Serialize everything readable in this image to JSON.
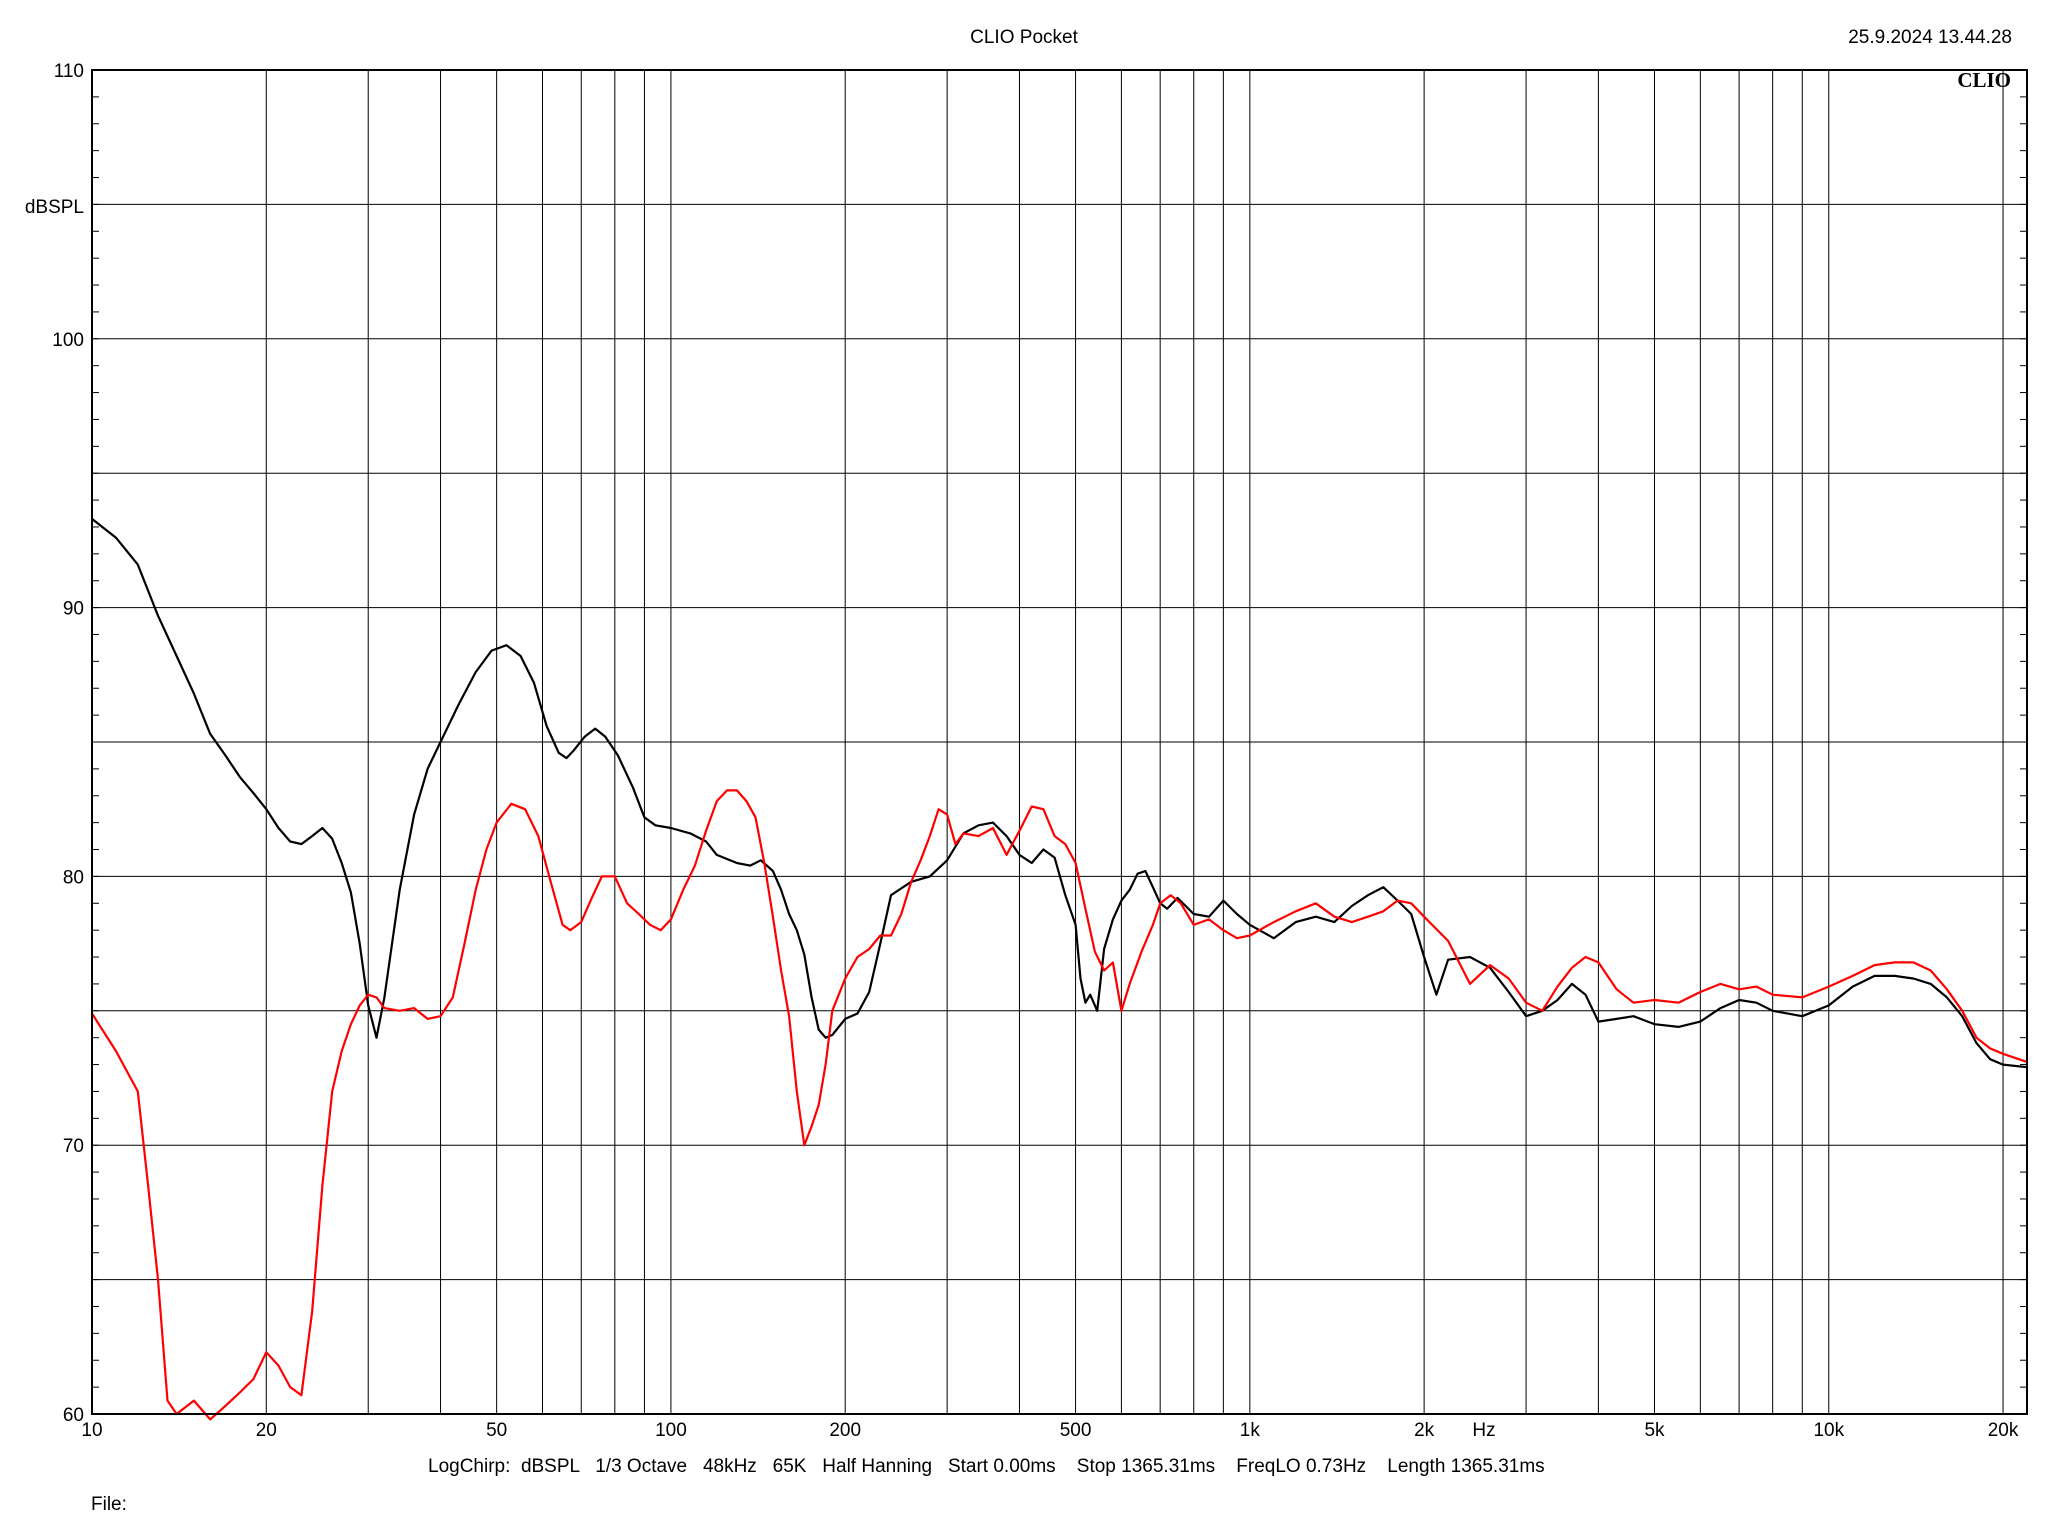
{
  "header": {
    "title": "CLIO Pocket",
    "timestamp": "25.9.2024 13.44.28",
    "logo": "CLIO"
  },
  "footer": {
    "settings": "LogChirp:  dBSPL   1/3 Octave   48kHz   65K   Half Hanning   Start 0.00ms    Stop 1365.31ms    FreqLO 0.73Hz    Length 1365.31ms",
    "file_label": "File:"
  },
  "colors": {
    "series_black": "#000000",
    "series_red": "#ff0000",
    "grid": "#000000",
    "background": "#ffffff"
  },
  "chart_data": {
    "type": "line",
    "title": "CLIO Pocket",
    "xlabel": "Hz",
    "ylabel": "dBSPL",
    "xscale": "log",
    "xlim": [
      10,
      22000
    ],
    "ylim": [
      60,
      110
    ],
    "grid": true,
    "x_ticks": [
      {
        "value": 10,
        "label": "10"
      },
      {
        "value": 20,
        "label": "20"
      },
      {
        "value": 50,
        "label": "50"
      },
      {
        "value": 100,
        "label": "100"
      },
      {
        "value": 200,
        "label": "200"
      },
      {
        "value": 500,
        "label": "500"
      },
      {
        "value": 1000,
        "label": "1k"
      },
      {
        "value": 2000,
        "label": "2k"
      },
      {
        "value": 5000,
        "label": "5k"
      },
      {
        "value": 10000,
        "label": "10k"
      },
      {
        "value": 20000,
        "label": "20k"
      }
    ],
    "y_ticks": [
      {
        "value": 60,
        "label": "60"
      },
      {
        "value": 70,
        "label": "70"
      },
      {
        "value": 80,
        "label": "80"
      },
      {
        "value": 90,
        "label": "90"
      },
      {
        "value": 100,
        "label": "100"
      },
      {
        "value": 110,
        "label": "110"
      }
    ],
    "series": [
      {
        "color": "#000000",
        "points": [
          [
            10,
            93.3
          ],
          [
            11,
            92.6
          ],
          [
            12,
            91.6
          ],
          [
            13,
            89.7
          ],
          [
            14,
            88.2
          ],
          [
            15,
            86.8
          ],
          [
            16,
            85.3
          ],
          [
            17,
            84.5
          ],
          [
            18,
            83.7
          ],
          [
            19,
            83.1
          ],
          [
            20,
            82.5
          ],
          [
            21,
            81.8
          ],
          [
            22,
            81.3
          ],
          [
            23,
            81.2
          ],
          [
            24,
            81.5
          ],
          [
            25,
            81.8
          ],
          [
            26,
            81.4
          ],
          [
            27,
            80.5
          ],
          [
            28,
            79.4
          ],
          [
            29,
            77.5
          ],
          [
            30,
            75.2
          ],
          [
            31,
            74.0
          ],
          [
            32,
            75.5
          ],
          [
            34,
            79.5
          ],
          [
            36,
            82.3
          ],
          [
            38,
            84.0
          ],
          [
            40,
            85.0
          ],
          [
            43,
            86.4
          ],
          [
            46,
            87.6
          ],
          [
            49,
            88.4
          ],
          [
            52,
            88.6
          ],
          [
            55,
            88.2
          ],
          [
            58,
            87.2
          ],
          [
            61,
            85.6
          ],
          [
            64,
            84.6
          ],
          [
            66,
            84.4
          ],
          [
            68,
            84.7
          ],
          [
            71,
            85.2
          ],
          [
            74,
            85.5
          ],
          [
            77,
            85.2
          ],
          [
            81,
            84.5
          ],
          [
            86,
            83.3
          ],
          [
            90,
            82.2
          ],
          [
            94,
            81.9
          ],
          [
            100,
            81.8
          ],
          [
            108,
            81.6
          ],
          [
            115,
            81.3
          ],
          [
            120,
            80.8
          ],
          [
            130,
            80.5
          ],
          [
            137,
            80.4
          ],
          [
            143,
            80.6
          ],
          [
            150,
            80.2
          ],
          [
            155,
            79.5
          ],
          [
            160,
            78.6
          ],
          [
            165,
            78.0
          ],
          [
            170,
            77.1
          ],
          [
            175,
            75.5
          ],
          [
            180,
            74.3
          ],
          [
            185,
            74.0
          ],
          [
            190,
            74.1
          ],
          [
            200,
            74.7
          ],
          [
            210,
            74.9
          ],
          [
            220,
            75.7
          ],
          [
            230,
            77.5
          ],
          [
            240,
            79.3
          ],
          [
            260,
            79.8
          ],
          [
            280,
            80.0
          ],
          [
            300,
            80.6
          ],
          [
            320,
            81.6
          ],
          [
            340,
            81.9
          ],
          [
            360,
            82.0
          ],
          [
            380,
            81.5
          ],
          [
            400,
            80.8
          ],
          [
            420,
            80.5
          ],
          [
            440,
            81.0
          ],
          [
            460,
            80.7
          ],
          [
            480,
            79.3
          ],
          [
            500,
            78.2
          ],
          [
            510,
            76.2
          ],
          [
            520,
            75.3
          ],
          [
            530,
            75.6
          ],
          [
            545,
            75.0
          ],
          [
            560,
            77.3
          ],
          [
            580,
            78.4
          ],
          [
            600,
            79.1
          ],
          [
            620,
            79.5
          ],
          [
            640,
            80.1
          ],
          [
            660,
            80.2
          ],
          [
            680,
            79.6
          ],
          [
            700,
            79.0
          ],
          [
            720,
            78.8
          ],
          [
            750,
            79.2
          ],
          [
            800,
            78.6
          ],
          [
            850,
            78.5
          ],
          [
            900,
            79.1
          ],
          [
            950,
            78.6
          ],
          [
            1000,
            78.2
          ],
          [
            1100,
            77.7
          ],
          [
            1200,
            78.3
          ],
          [
            1300,
            78.5
          ],
          [
            1400,
            78.3
          ],
          [
            1500,
            78.9
          ],
          [
            1600,
            79.3
          ],
          [
            1700,
            79.6
          ],
          [
            1800,
            79.1
          ],
          [
            1900,
            78.6
          ],
          [
            2000,
            77.0
          ],
          [
            2100,
            75.6
          ],
          [
            2200,
            76.9
          ],
          [
            2400,
            77.0
          ],
          [
            2600,
            76.6
          ],
          [
            2800,
            75.7
          ],
          [
            3000,
            74.8
          ],
          [
            3200,
            75.0
          ],
          [
            3400,
            75.4
          ],
          [
            3600,
            76.0
          ],
          [
            3800,
            75.6
          ],
          [
            4000,
            74.6
          ],
          [
            4300,
            74.7
          ],
          [
            4600,
            74.8
          ],
          [
            5000,
            74.5
          ],
          [
            5500,
            74.4
          ],
          [
            6000,
            74.6
          ],
          [
            6500,
            75.1
          ],
          [
            7000,
            75.4
          ],
          [
            7500,
            75.3
          ],
          [
            8000,
            75.0
          ],
          [
            9000,
            74.8
          ],
          [
            10000,
            75.2
          ],
          [
            11000,
            75.9
          ],
          [
            12000,
            76.3
          ],
          [
            13000,
            76.3
          ],
          [
            14000,
            76.2
          ],
          [
            15000,
            76.0
          ],
          [
            16000,
            75.5
          ],
          [
            17000,
            74.8
          ],
          [
            18000,
            73.8
          ],
          [
            19000,
            73.2
          ],
          [
            20000,
            73.0
          ],
          [
            22000,
            72.9
          ]
        ]
      },
      {
        "color": "#ff0000",
        "points": [
          [
            10,
            74.9
          ],
          [
            11,
            73.5
          ],
          [
            12,
            72.0
          ],
          [
            12.5,
            68.5
          ],
          [
            13,
            65.0
          ],
          [
            13.5,
            60.5
          ],
          [
            14,
            60.0
          ],
          [
            15,
            60.5
          ],
          [
            16,
            59.8
          ],
          [
            17,
            60.3
          ],
          [
            18,
            60.8
          ],
          [
            19,
            61.3
          ],
          [
            20,
            62.3
          ],
          [
            21,
            61.8
          ],
          [
            22,
            61.0
          ],
          [
            23,
            60.7
          ],
          [
            24,
            63.8
          ],
          [
            25,
            68.5
          ],
          [
            26,
            72.0
          ],
          [
            27,
            73.5
          ],
          [
            28,
            74.5
          ],
          [
            29,
            75.2
          ],
          [
            30,
            75.6
          ],
          [
            31,
            75.5
          ],
          [
            32,
            75.1
          ],
          [
            34,
            75.0
          ],
          [
            36,
            75.1
          ],
          [
            38,
            74.7
          ],
          [
            40,
            74.8
          ],
          [
            42,
            75.5
          ],
          [
            44,
            77.5
          ],
          [
            46,
            79.5
          ],
          [
            48,
            81.0
          ],
          [
            50,
            82.0
          ],
          [
            53,
            82.7
          ],
          [
            56,
            82.5
          ],
          [
            59,
            81.5
          ],
          [
            62,
            79.8
          ],
          [
            65,
            78.2
          ],
          [
            67,
            78.0
          ],
          [
            70,
            78.3
          ],
          [
            73,
            79.2
          ],
          [
            76,
            80.0
          ],
          [
            80,
            80.0
          ],
          [
            84,
            79.0
          ],
          [
            88,
            78.6
          ],
          [
            92,
            78.2
          ],
          [
            96,
            78.0
          ],
          [
            100,
            78.4
          ],
          [
            105,
            79.5
          ],
          [
            110,
            80.4
          ],
          [
            115,
            81.7
          ],
          [
            120,
            82.8
          ],
          [
            125,
            83.2
          ],
          [
            130,
            83.2
          ],
          [
            135,
            82.8
          ],
          [
            140,
            82.2
          ],
          [
            145,
            80.5
          ],
          [
            150,
            78.5
          ],
          [
            155,
            76.5
          ],
          [
            160,
            74.8
          ],
          [
            165,
            72.0
          ],
          [
            170,
            70.0
          ],
          [
            175,
            70.7
          ],
          [
            180,
            71.5
          ],
          [
            185,
            73.0
          ],
          [
            190,
            75.0
          ],
          [
            200,
            76.2
          ],
          [
            210,
            77.0
          ],
          [
            220,
            77.3
          ],
          [
            230,
            77.8
          ],
          [
            240,
            77.8
          ],
          [
            250,
            78.6
          ],
          [
            260,
            79.8
          ],
          [
            270,
            80.6
          ],
          [
            280,
            81.5
          ],
          [
            290,
            82.5
          ],
          [
            300,
            82.3
          ],
          [
            310,
            81.2
          ],
          [
            320,
            81.6
          ],
          [
            340,
            81.5
          ],
          [
            360,
            81.8
          ],
          [
            380,
            80.8
          ],
          [
            400,
            81.7
          ],
          [
            420,
            82.6
          ],
          [
            440,
            82.5
          ],
          [
            460,
            81.5
          ],
          [
            480,
            81.2
          ],
          [
            500,
            80.5
          ],
          [
            520,
            78.8
          ],
          [
            540,
            77.2
          ],
          [
            560,
            76.5
          ],
          [
            580,
            76.8
          ],
          [
            600,
            75.0
          ],
          [
            620,
            76.0
          ],
          [
            650,
            77.2
          ],
          [
            680,
            78.2
          ],
          [
            700,
            79.0
          ],
          [
            730,
            79.3
          ],
          [
            760,
            79.0
          ],
          [
            800,
            78.2
          ],
          [
            850,
            78.4
          ],
          [
            900,
            78.0
          ],
          [
            950,
            77.7
          ],
          [
            1000,
            77.8
          ],
          [
            1100,
            78.3
          ],
          [
            1200,
            78.7
          ],
          [
            1300,
            79.0
          ],
          [
            1400,
            78.5
          ],
          [
            1500,
            78.3
          ],
          [
            1600,
            78.5
          ],
          [
            1700,
            78.7
          ],
          [
            1800,
            79.1
          ],
          [
            1900,
            79.0
          ],
          [
            2000,
            78.5
          ],
          [
            2200,
            77.6
          ],
          [
            2400,
            76.0
          ],
          [
            2600,
            76.7
          ],
          [
            2800,
            76.2
          ],
          [
            3000,
            75.3
          ],
          [
            3200,
            75.0
          ],
          [
            3400,
            75.9
          ],
          [
            3600,
            76.6
          ],
          [
            3800,
            77.0
          ],
          [
            4000,
            76.8
          ],
          [
            4300,
            75.8
          ],
          [
            4600,
            75.3
          ],
          [
            5000,
            75.4
          ],
          [
            5500,
            75.3
          ],
          [
            6000,
            75.7
          ],
          [
            6500,
            76.0
          ],
          [
            7000,
            75.8
          ],
          [
            7500,
            75.9
          ],
          [
            8000,
            75.6
          ],
          [
            9000,
            75.5
          ],
          [
            10000,
            75.9
          ],
          [
            11000,
            76.3
          ],
          [
            12000,
            76.7
          ],
          [
            13000,
            76.8
          ],
          [
            14000,
            76.8
          ],
          [
            15000,
            76.5
          ],
          [
            16000,
            75.8
          ],
          [
            17000,
            75.0
          ],
          [
            18000,
            74.0
          ],
          [
            19000,
            73.6
          ],
          [
            20000,
            73.4
          ],
          [
            22000,
            73.1
          ]
        ]
      }
    ]
  }
}
